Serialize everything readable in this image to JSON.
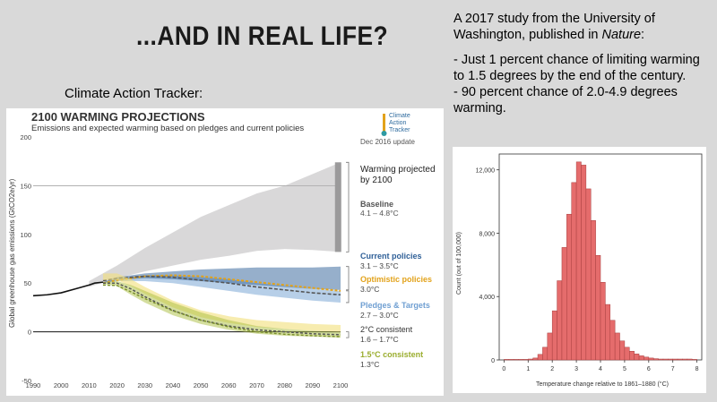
{
  "slide": {
    "title": "...AND IN REAL LIFE?",
    "cat_label": "Climate Action Tracker:",
    "study": {
      "intro_pre": "A 2017 study from the University of Washington, published in ",
      "intro_journal": "Nature",
      "intro_post": ":",
      "bullet1": "- Just 1 percent chance of limiting warming to 1.5 degrees by the end of the century.",
      "bullet2": "- 90 percent chance of 2.0-4.9 degrees warming."
    }
  },
  "chart_data": [
    {
      "type": "area",
      "title": "2100 WARMING PROJECTIONS",
      "subtitle": "Emissions and expected warming based on pledges and current policies",
      "update": "Dec 2016 update",
      "logo_text": [
        "Climate",
        "Action",
        "Tracker"
      ],
      "ylabel": "Global greenhouse gas emissions (GtCO2e/yr)",
      "ylim": [
        -50,
        200
      ],
      "yticks": [
        "200",
        "150",
        "100",
        "50",
        "0",
        "-50"
      ],
      "xlim": [
        1990,
        2100
      ],
      "xticks": [
        "1990",
        "2000",
        "2010",
        "2020",
        "2030",
        "2040",
        "2050",
        "2060",
        "2070",
        "2080",
        "2090",
        "2100"
      ],
      "historical": {
        "x": [
          1990,
          1995,
          2000,
          2005,
          2010,
          2012,
          2015
        ],
        "y": [
          37,
          38,
          40,
          44,
          48,
          50,
          51
        ]
      },
      "series": [
        {
          "name": "Baseline",
          "range": "4.1 – 4.8°C",
          "color": "#b4b2b3",
          "x": [
            2010,
            2020,
            2030,
            2040,
            2050,
            2060,
            2070,
            2080,
            2090,
            2100
          ],
          "low": [
            46,
            55,
            62,
            68,
            74,
            78,
            83,
            85,
            84,
            82
          ],
          "high": [
            52,
            68,
            86,
            102,
            118,
            130,
            142,
            150,
            162,
            174
          ]
        },
        {
          "name": "Current policies",
          "range": "3.1 – 3.5°C",
          "color": "#2e5f97",
          "x": [
            2015,
            2020,
            2030,
            2040,
            2050,
            2060,
            2070,
            2080,
            2090,
            2100
          ],
          "low": [
            50,
            53,
            55,
            54,
            52,
            50,
            48,
            46,
            44,
            43
          ],
          "high": [
            51,
            56,
            60,
            62,
            64,
            65,
            66,
            66,
            66,
            67
          ]
        },
        {
          "name": "Optimistic policies",
          "range": "3.0°C",
          "color": "#e2a21a",
          "x": [
            2015,
            2020,
            2030,
            2040,
            2050,
            2060,
            2070,
            2080,
            2090,
            2100
          ],
          "mid": [
            50,
            53,
            57,
            58,
            57,
            54,
            51,
            48,
            45,
            42
          ]
        },
        {
          "name": "Pledges & Targets",
          "range": "2.7 – 3.0°C",
          "color": "#6f9fd2",
          "x": [
            2015,
            2020,
            2030,
            2040,
            2050,
            2060,
            2070,
            2080,
            2090,
            2100
          ],
          "low": [
            50,
            52,
            52,
            50,
            46,
            42,
            38,
            35,
            32,
            30
          ],
          "high": [
            51,
            54,
            58,
            58,
            56,
            54,
            50,
            47,
            44,
            42
          ]
        },
        {
          "name": "2°C consistent",
          "range": "1.6 – 1.7°C",
          "color": "#777777",
          "x": [
            2015,
            2020,
            2025,
            2030,
            2040,
            2050,
            2060,
            2070,
            2080,
            2090,
            2100
          ],
          "mid": [
            50,
            50,
            44,
            36,
            22,
            12,
            6,
            2,
            0,
            -2,
            -3
          ]
        },
        {
          "name": "1.5°C consistent",
          "range": "1.3°C",
          "color": "#aabd3e",
          "x": [
            2015,
            2020,
            2025,
            2030,
            2040,
            2050,
            2060,
            2070,
            2080,
            2090,
            2100
          ],
          "low": [
            49,
            47,
            38,
            30,
            17,
            8,
            2,
            -2,
            -4,
            -5,
            -6
          ],
          "high": [
            51,
            52,
            48,
            42,
            30,
            20,
            12,
            6,
            3,
            1,
            0
          ]
        }
      ],
      "annotations": {
        "warming_projected": [
          "Warming projected",
          "by 2100"
        ]
      }
    },
    {
      "type": "bar",
      "xlabel": "Temperature change relative to 1861–1880 (°C)",
      "ylabel": "Count (out of 100,000)",
      "ylim": [
        0,
        13000
      ],
      "yticks": [
        0,
        4000,
        8000,
        12000
      ],
      "ytick_labels": [
        "0",
        "4,000",
        "8,000",
        "12,000"
      ],
      "xlim": [
        -0.2,
        8.2
      ],
      "xticks": [
        "0",
        "1",
        "2",
        "3",
        "4",
        "5",
        "6",
        "7",
        "8"
      ],
      "color": "#e56c6c",
      "bin_width": 0.2,
      "bin_starts": [
        0.0,
        0.2,
        0.4,
        0.6,
        0.8,
        1.0,
        1.2,
        1.4,
        1.6,
        1.8,
        2.0,
        2.2,
        2.4,
        2.6,
        2.8,
        3.0,
        3.2,
        3.4,
        3.6,
        3.8,
        4.0,
        4.2,
        4.4,
        4.6,
        4.8,
        5.0,
        5.2,
        5.4,
        5.6,
        5.8,
        6.0,
        6.2,
        6.4,
        6.6,
        6.8,
        7.0,
        7.2,
        7.4,
        7.6,
        7.8
      ],
      "values": [
        0,
        0,
        0,
        0,
        0,
        40,
        120,
        350,
        800,
        1700,
        3100,
        5000,
        7100,
        9200,
        11200,
        12500,
        12300,
        10800,
        8800,
        6600,
        4900,
        3500,
        2500,
        1700,
        1200,
        800,
        550,
        380,
        260,
        180,
        120,
        80,
        55,
        40,
        25,
        15,
        10,
        5,
        5,
        0
      ]
    }
  ]
}
